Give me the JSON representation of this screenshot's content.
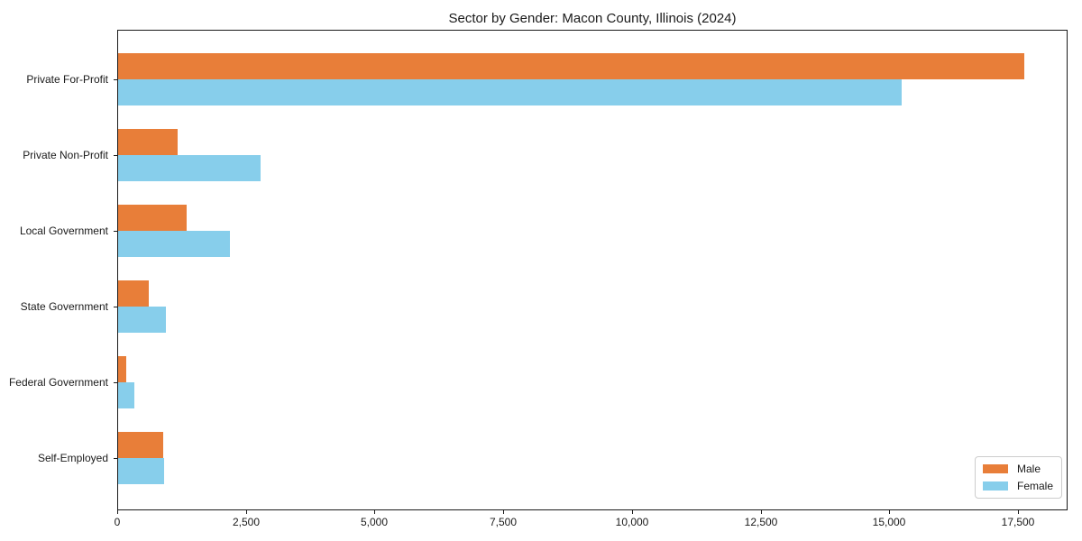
{
  "chart_data": {
    "type": "bar",
    "orientation": "horizontal",
    "title": "Sector by Gender: Macon County, Illinois (2024)",
    "categories": [
      "Private For-Profit",
      "Private Non-Profit",
      "Local Government",
      "State Government",
      "Federal Government",
      "Self-Employed"
    ],
    "series": [
      {
        "name": "Male",
        "color": "#E87E39",
        "values": [
          17600,
          1155,
          1330,
          595,
          165,
          875
        ]
      },
      {
        "name": "Female",
        "color": "#87CEEB",
        "values": [
          15225,
          2770,
          2175,
          930,
          310,
          890
        ]
      }
    ],
    "xlabel": "",
    "ylabel": "",
    "xlim": [
      0,
      18430
    ],
    "xticks": [
      0,
      2500,
      5000,
      7500,
      10000,
      12500,
      15000,
      17500
    ],
    "xtick_labels": [
      "0",
      "2,500",
      "5,000",
      "7,500",
      "10,000",
      "12,500",
      "15,000",
      "17,500"
    ],
    "grid": false,
    "legend": {
      "position": "lower right"
    },
    "colors": {
      "axis": "#1a1a1a",
      "background": "#ffffff",
      "legend_border": "#cccccc"
    }
  }
}
